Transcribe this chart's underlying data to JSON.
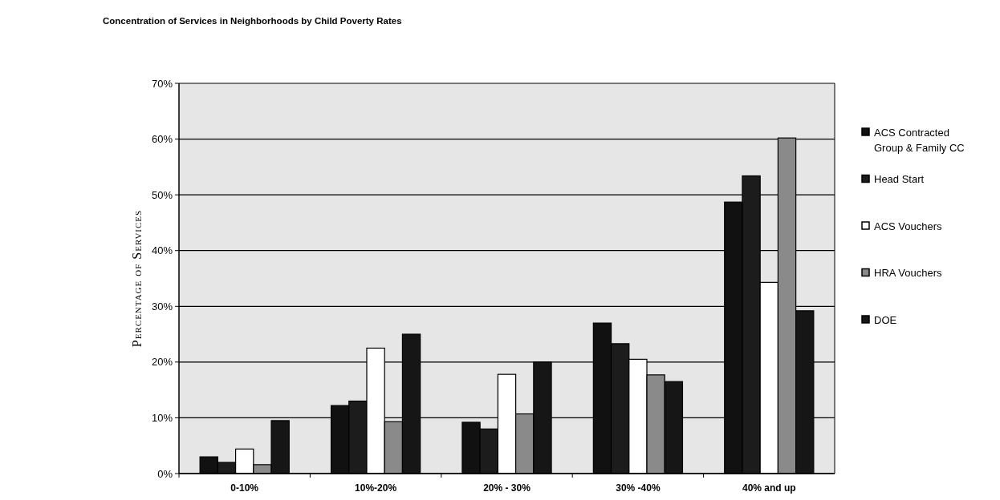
{
  "chart_data": {
    "type": "bar",
    "title": "Concentration of Services in Neighborhoods by Child Poverty Rates",
    "ylabel": "Percentage of Services",
    "categories": [
      "0-10%",
      "10%-20%",
      "20% - 30%",
      "30% -40%",
      "40% and up"
    ],
    "series": [
      {
        "name": "ACS Contracted Group & Family CC",
        "color": "#111111",
        "values": [
          3,
          12.2,
          9.2,
          27,
          48.7
        ]
      },
      {
        "name": "Head Start",
        "color": "#1c1c1c",
        "values": [
          2,
          13,
          8,
          23.3,
          53.4
        ]
      },
      {
        "name": "ACS Vouchers",
        "color": "#ffffff",
        "values": [
          4.4,
          22.5,
          17.8,
          20.5,
          34.3
        ]
      },
      {
        "name": "HRA Vouchers",
        "color": "#8a8a8a",
        "values": [
          1.6,
          9.3,
          10.7,
          17.7,
          60.2
        ]
      },
      {
        "name": "DOE",
        "color": "#161616",
        "values": [
          9.5,
          25,
          20,
          16.5,
          29.2
        ]
      }
    ],
    "ylim": [
      0,
      70
    ],
    "yticks": [
      {
        "value": 0,
        "label": "0%"
      },
      {
        "value": 10,
        "label": "10%"
      },
      {
        "value": 20,
        "label": "20%"
      },
      {
        "value": 30,
        "label": "30%"
      },
      {
        "value": 40,
        "label": "40%"
      },
      {
        "value": 50,
        "label": "50%"
      },
      {
        "value": 60,
        "label": "60%"
      },
      {
        "value": 70,
        "label": "70%"
      }
    ],
    "grid": "y",
    "legend": "right"
  }
}
